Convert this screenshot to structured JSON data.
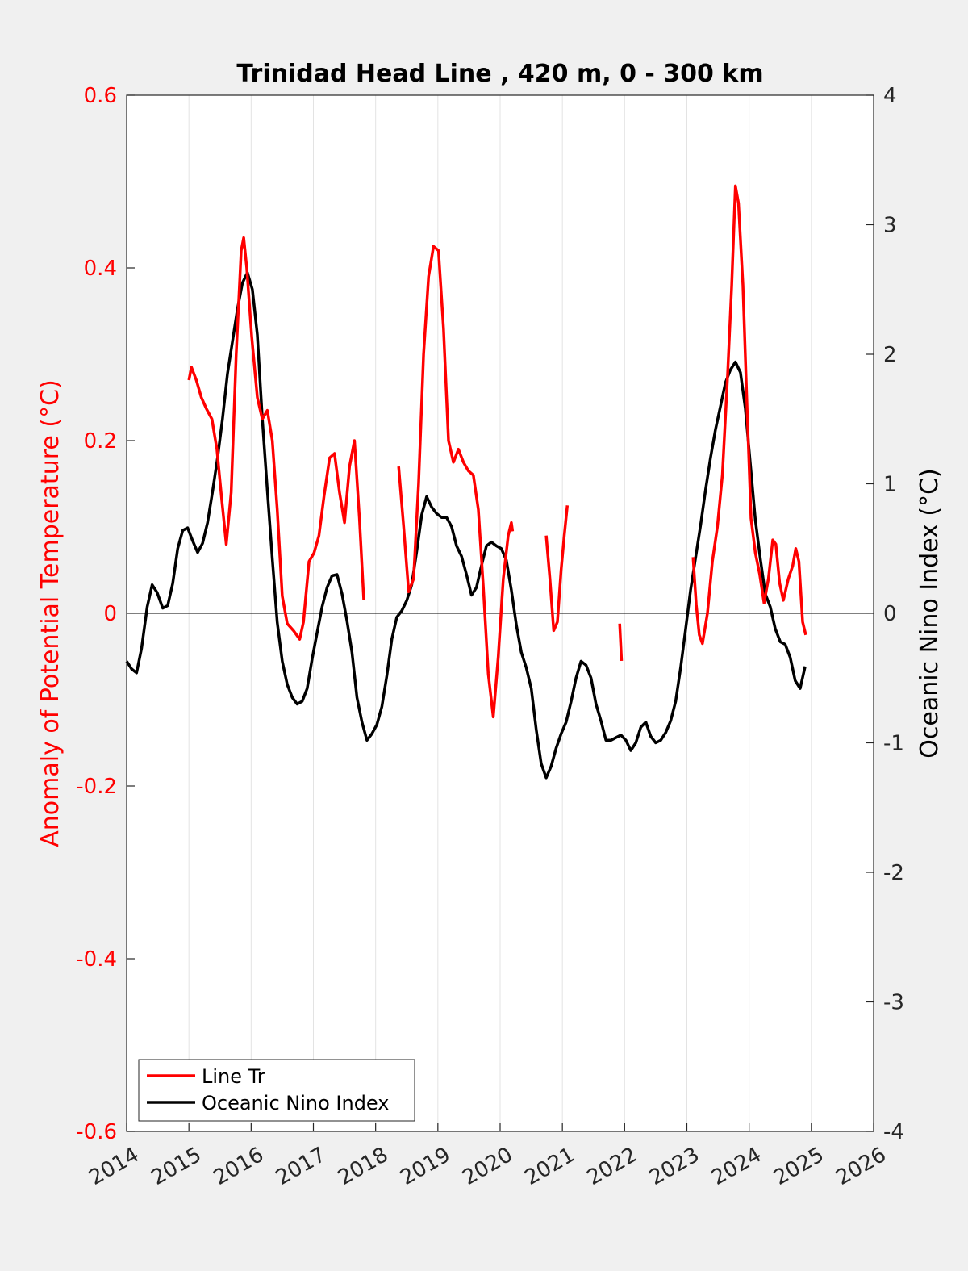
{
  "chart_data": {
    "type": "line",
    "title": "Trinidad Head Line , 420 m, 0 - 300 km",
    "ylabel_left": "Anomaly of Potential Temperature (°C)",
    "ylabel_right": "Oceanic Nino Index (°C)",
    "xlabel": "",
    "xlim": [
      2014,
      2026
    ],
    "ylim_left": [
      -0.6,
      0.6
    ],
    "ylim_right": [
      -4,
      4
    ],
    "x_ticks": [
      2014,
      2015,
      2016,
      2017,
      2018,
      2019,
      2020,
      2021,
      2022,
      2023,
      2024,
      2025,
      2026
    ],
    "x_tick_labels": [
      "2014",
      "2015",
      "2016",
      "2017",
      "2018",
      "2019",
      "2020",
      "2021",
      "2022",
      "2023",
      "2024",
      "2025",
      "2026"
    ],
    "y_left_ticks": [
      0.6,
      0.4,
      0.2,
      0,
      -0.2,
      -0.4,
      -0.6
    ],
    "y_left_tick_labels": [
      "0.6",
      "0.4",
      "0.2",
      "0",
      "-0.2",
      "-0.4",
      "-0.6"
    ],
    "y_right_ticks": [
      4,
      3,
      2,
      1,
      0,
      -1,
      -2,
      -3,
      -4
    ],
    "y_right_tick_labels": [
      "4",
      "3",
      "2",
      "1",
      "0",
      "-1",
      "-2",
      "-3",
      "-4"
    ],
    "grid": "vertical",
    "zero_line": true,
    "legend": {
      "location": "bottom-left",
      "entries": [
        {
          "label": "Line Tr",
          "color": "#ff0000"
        },
        {
          "label": "Oceanic Nino Index",
          "color": "#000000"
        }
      ]
    },
    "series": [
      {
        "name": "Line Tr",
        "axis": "left",
        "color": "#ff0000",
        "segments": [
          [
            [
              2015.0,
              0.27
            ],
            [
              2015.04,
              0.285
            ],
            [
              2015.12,
              0.27
            ],
            [
              2015.2,
              0.25
            ],
            [
              2015.28,
              0.237
            ],
            [
              2015.37,
              0.225
            ],
            [
              2015.45,
              0.19
            ],
            [
              2015.53,
              0.13
            ],
            [
              2015.6,
              0.08
            ],
            [
              2015.68,
              0.14
            ],
            [
              2015.76,
              0.3
            ],
            [
              2015.84,
              0.42
            ],
            [
              2015.88,
              0.435
            ],
            [
              2015.93,
              0.4
            ],
            [
              2016.01,
              0.32
            ],
            [
              2016.1,
              0.25
            ],
            [
              2016.18,
              0.225
            ],
            [
              2016.26,
              0.235
            ],
            [
              2016.34,
              0.2
            ],
            [
              2016.42,
              0.12
            ],
            [
              2016.5,
              0.02
            ],
            [
              2016.58,
              -0.012
            ],
            [
              2016.68,
              -0.02
            ],
            [
              2016.78,
              -0.03
            ],
            [
              2016.84,
              -0.01
            ],
            [
              2016.93,
              0.06
            ],
            [
              2017.01,
              0.07
            ],
            [
              2017.09,
              0.09
            ],
            [
              2017.17,
              0.135
            ],
            [
              2017.26,
              0.18
            ],
            [
              2017.34,
              0.185
            ],
            [
              2017.42,
              0.14
            ],
            [
              2017.5,
              0.105
            ],
            [
              2017.58,
              0.17
            ],
            [
              2017.66,
              0.2
            ],
            [
              2017.74,
              0.11
            ],
            [
              2017.81,
              0.015
            ]
          ],
          [
            [
              2018.37,
              0.17
            ],
            [
              2018.45,
              0.1
            ],
            [
              2018.53,
              0.025
            ],
            [
              2018.61,
              0.04
            ],
            [
              2018.69,
              0.15
            ],
            [
              2018.77,
              0.3
            ],
            [
              2018.85,
              0.39
            ],
            [
              2018.93,
              0.425
            ],
            [
              2019.01,
              0.42
            ],
            [
              2019.09,
              0.33
            ],
            [
              2019.17,
              0.2
            ],
            [
              2019.25,
              0.175
            ],
            [
              2019.33,
              0.19
            ],
            [
              2019.41,
              0.175
            ],
            [
              2019.49,
              0.165
            ],
            [
              2019.57,
              0.16
            ],
            [
              2019.65,
              0.12
            ],
            [
              2019.73,
              0.03
            ],
            [
              2019.81,
              -0.07
            ],
            [
              2019.89,
              -0.12
            ],
            [
              2019.97,
              -0.05
            ],
            [
              2020.05,
              0.04
            ],
            [
              2020.13,
              0.09
            ],
            [
              2020.18,
              0.105
            ],
            [
              2020.2,
              0.095
            ]
          ],
          [
            [
              2020.74,
              0.09
            ],
            [
              2020.8,
              0.04
            ],
            [
              2020.86,
              -0.02
            ],
            [
              2020.92,
              -0.01
            ],
            [
              2020.98,
              0.05
            ],
            [
              2021.03,
              0.09
            ],
            [
              2021.08,
              0.125
            ]
          ],
          [
            [
              2021.92,
              -0.012
            ],
            [
              2021.95,
              -0.055
            ]
          ],
          [
            [
              2023.1,
              0.065
            ],
            [
              2023.15,
              0.01
            ],
            [
              2023.2,
              -0.025
            ],
            [
              2023.25,
              -0.035
            ],
            [
              2023.33,
              0.0
            ],
            [
              2023.41,
              0.06
            ],
            [
              2023.49,
              0.1
            ],
            [
              2023.57,
              0.16
            ],
            [
              2023.65,
              0.27
            ],
            [
              2023.72,
              0.38
            ],
            [
              2023.78,
              0.495
            ],
            [
              2023.83,
              0.475
            ],
            [
              2023.9,
              0.38
            ],
            [
              2023.97,
              0.23
            ],
            [
              2024.03,
              0.11
            ],
            [
              2024.1,
              0.07
            ],
            [
              2024.17,
              0.045
            ],
            [
              2024.24,
              0.012
            ],
            [
              2024.31,
              0.04
            ],
            [
              2024.38,
              0.085
            ],
            [
              2024.43,
              0.08
            ],
            [
              2024.49,
              0.035
            ],
            [
              2024.55,
              0.015
            ],
            [
              2024.63,
              0.04
            ],
            [
              2024.7,
              0.055
            ],
            [
              2024.75,
              0.075
            ],
            [
              2024.8,
              0.06
            ],
            [
              2024.86,
              -0.01
            ],
            [
              2024.91,
              -0.025
            ]
          ]
        ]
      },
      {
        "name": "Oceanic Nino Index",
        "axis": "right",
        "color": "#000000",
        "segments": [
          [
            [
              2014.0,
              -0.37
            ],
            [
              2014.08,
              -0.43
            ],
            [
              2014.16,
              -0.46
            ],
            [
              2014.24,
              -0.27
            ],
            [
              2014.33,
              0.05
            ],
            [
              2014.41,
              0.22
            ],
            [
              2014.49,
              0.16
            ],
            [
              2014.58,
              0.04
            ],
            [
              2014.66,
              0.06
            ],
            [
              2014.74,
              0.23
            ],
            [
              2014.82,
              0.5
            ],
            [
              2014.9,
              0.64
            ],
            [
              2014.98,
              0.66
            ],
            [
              2015.06,
              0.56
            ],
            [
              2015.14,
              0.47
            ],
            [
              2015.22,
              0.54
            ],
            [
              2015.3,
              0.7
            ],
            [
              2015.38,
              0.94
            ],
            [
              2015.46,
              1.2
            ],
            [
              2015.54,
              1.5
            ],
            [
              2015.62,
              1.85
            ],
            [
              2015.7,
              2.1
            ],
            [
              2015.78,
              2.35
            ],
            [
              2015.86,
              2.55
            ],
            [
              2015.94,
              2.63
            ],
            [
              2016.02,
              2.5
            ],
            [
              2016.1,
              2.15
            ],
            [
              2016.18,
              1.5
            ],
            [
              2016.26,
              0.95
            ],
            [
              2016.34,
              0.42
            ],
            [
              2016.42,
              -0.07
            ],
            [
              2016.5,
              -0.37
            ],
            [
              2016.58,
              -0.55
            ],
            [
              2016.66,
              -0.65
            ],
            [
              2016.74,
              -0.7
            ],
            [
              2016.82,
              -0.68
            ],
            [
              2016.9,
              -0.58
            ],
            [
              2016.98,
              -0.35
            ],
            [
              2017.06,
              -0.15
            ],
            [
              2017.14,
              0.05
            ],
            [
              2017.22,
              0.2
            ],
            [
              2017.3,
              0.29
            ],
            [
              2017.38,
              0.3
            ],
            [
              2017.46,
              0.15
            ],
            [
              2017.54,
              -0.06
            ],
            [
              2017.62,
              -0.3
            ],
            [
              2017.7,
              -0.65
            ],
            [
              2017.78,
              -0.84
            ],
            [
              2017.86,
              -0.98
            ],
            [
              2017.94,
              -0.93
            ],
            [
              2018.02,
              -0.86
            ],
            [
              2018.1,
              -0.72
            ],
            [
              2018.18,
              -0.48
            ],
            [
              2018.26,
              -0.2
            ],
            [
              2018.34,
              -0.03
            ],
            [
              2018.42,
              0.02
            ],
            [
              2018.5,
              0.1
            ],
            [
              2018.58,
              0.22
            ],
            [
              2018.66,
              0.48
            ],
            [
              2018.74,
              0.76
            ],
            [
              2018.82,
              0.9
            ],
            [
              2018.9,
              0.82
            ],
            [
              2018.98,
              0.77
            ],
            [
              2019.06,
              0.74
            ],
            [
              2019.14,
              0.74
            ],
            [
              2019.22,
              0.67
            ],
            [
              2019.3,
              0.52
            ],
            [
              2019.38,
              0.44
            ],
            [
              2019.46,
              0.3
            ],
            [
              2019.54,
              0.14
            ],
            [
              2019.62,
              0.2
            ],
            [
              2019.7,
              0.37
            ],
            [
              2019.78,
              0.52
            ],
            [
              2019.86,
              0.55
            ],
            [
              2019.94,
              0.52
            ],
            [
              2020.02,
              0.5
            ],
            [
              2020.1,
              0.41
            ],
            [
              2020.18,
              0.18
            ],
            [
              2020.26,
              -0.09
            ],
            [
              2020.34,
              -0.3
            ],
            [
              2020.42,
              -0.42
            ],
            [
              2020.5,
              -0.58
            ],
            [
              2020.58,
              -0.9
            ],
            [
              2020.66,
              -1.16
            ],
            [
              2020.74,
              -1.27
            ],
            [
              2020.82,
              -1.18
            ],
            [
              2020.9,
              -1.04
            ],
            [
              2020.98,
              -0.93
            ],
            [
              2021.06,
              -0.84
            ],
            [
              2021.14,
              -0.68
            ],
            [
              2021.22,
              -0.5
            ],
            [
              2021.3,
              -0.37
            ],
            [
              2021.38,
              -0.4
            ],
            [
              2021.46,
              -0.5
            ],
            [
              2021.54,
              -0.7
            ],
            [
              2021.62,
              -0.83
            ],
            [
              2021.7,
              -0.98
            ],
            [
              2021.78,
              -0.98
            ],
            [
              2021.86,
              -0.96
            ],
            [
              2021.94,
              -0.94
            ],
            [
              2022.02,
              -0.98
            ],
            [
              2022.1,
              -1.06
            ],
            [
              2022.18,
              -1.0
            ],
            [
              2022.26,
              -0.88
            ],
            [
              2022.34,
              -0.84
            ],
            [
              2022.42,
              -0.95
            ],
            [
              2022.5,
              -1.0
            ],
            [
              2022.58,
              -0.98
            ],
            [
              2022.66,
              -0.92
            ],
            [
              2022.74,
              -0.83
            ],
            [
              2022.82,
              -0.68
            ],
            [
              2022.9,
              -0.42
            ],
            [
              2022.98,
              -0.12
            ],
            [
              2023.06,
              0.18
            ],
            [
              2023.14,
              0.43
            ],
            [
              2023.22,
              0.68
            ],
            [
              2023.3,
              0.95
            ],
            [
              2023.38,
              1.2
            ],
            [
              2023.46,
              1.42
            ],
            [
              2023.54,
              1.6
            ],
            [
              2023.62,
              1.78
            ],
            [
              2023.7,
              1.88
            ],
            [
              2023.78,
              1.94
            ],
            [
              2023.86,
              1.86
            ],
            [
              2023.94,
              1.58
            ],
            [
              2024.02,
              1.15
            ],
            [
              2024.1,
              0.72
            ],
            [
              2024.18,
              0.42
            ],
            [
              2024.26,
              0.15
            ],
            [
              2024.34,
              0.05
            ],
            [
              2024.42,
              -0.12
            ],
            [
              2024.5,
              -0.22
            ],
            [
              2024.58,
              -0.24
            ],
            [
              2024.66,
              -0.34
            ],
            [
              2024.74,
              -0.52
            ],
            [
              2024.82,
              -0.58
            ],
            [
              2024.9,
              -0.41
            ]
          ]
        ]
      }
    ]
  }
}
